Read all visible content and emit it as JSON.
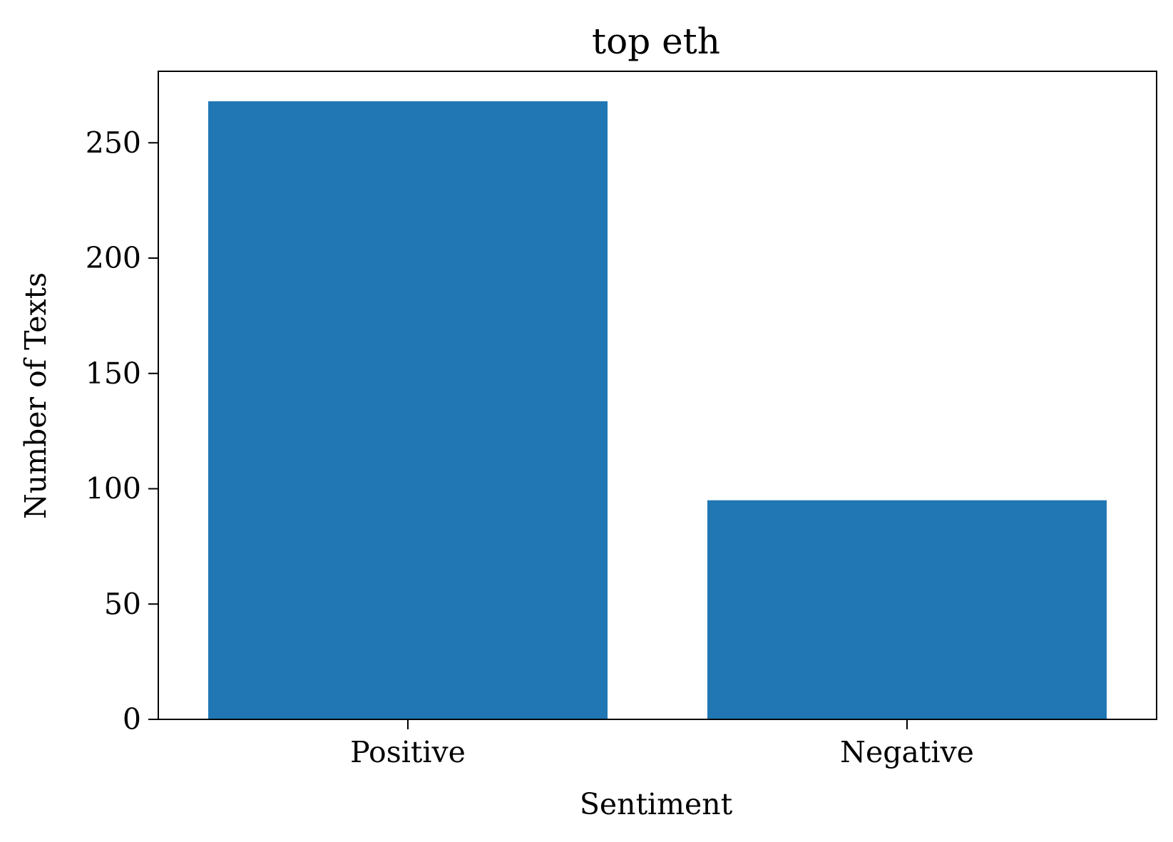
{
  "chart_data": {
    "type": "bar",
    "title": "top eth",
    "xlabel": "Sentiment",
    "ylabel": "Number of Texts",
    "categories": [
      "Positive",
      "Negative"
    ],
    "values": [
      268,
      95
    ],
    "ylim": [
      0,
      281
    ],
    "yticks": [
      0,
      50,
      100,
      150,
      200,
      250
    ],
    "yticks_labels": [
      "0",
      "50",
      "100",
      "150",
      "200",
      "250"
    ],
    "grid": false,
    "bar_color": "#2077b4"
  }
}
